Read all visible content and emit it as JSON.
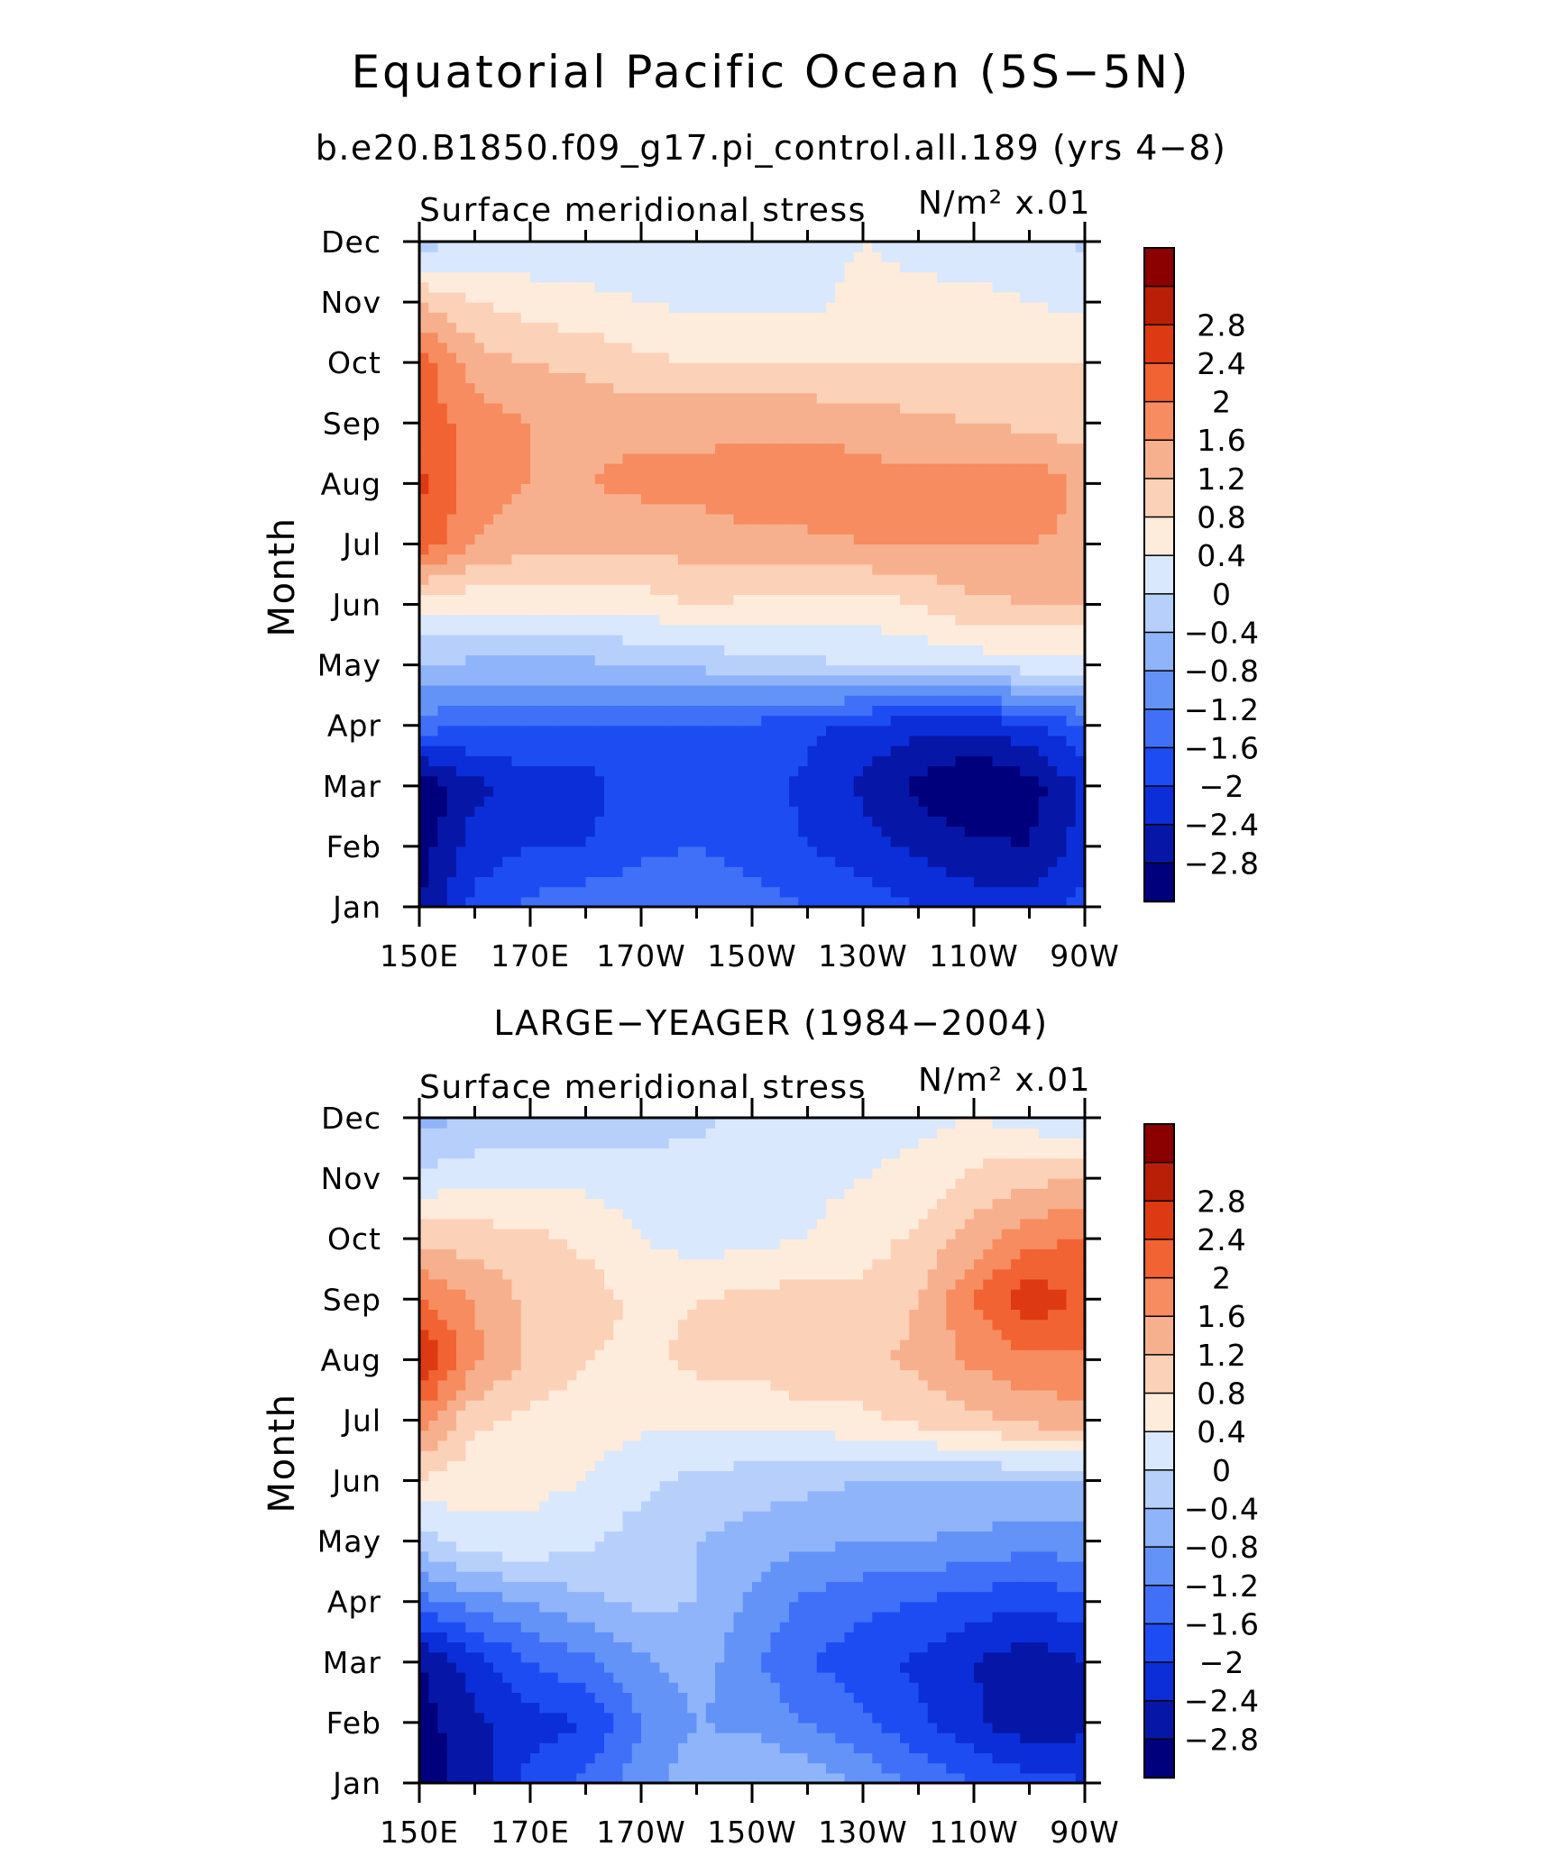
{
  "title": "Equatorial Pacific Ocean (5S−5N)",
  "colors": [
    "#00007d",
    "#0617a8",
    "#0b2ed8",
    "#1d4df2",
    "#3f70f7",
    "#6493f7",
    "#8fb4f9",
    "#b7d0fb",
    "#d9e8fd",
    "#fdebdb",
    "#fbd1b8",
    "#f7b08d",
    "#f68c5f",
    "#f26333",
    "#dd3a13",
    "#b91e06",
    "#8b0000"
  ],
  "chart_data": [
    {
      "type": "heatmap",
      "subtitle": "b.e20.B1850.f09_g17.pi_control.all.189 (yrs 4−8)",
      "variable_label": "Surface meridional stress",
      "units_label": "N/m² x.01",
      "ylabel": "Month",
      "x_ticks": [
        "150E",
        "170E",
        "170W",
        "150W",
        "130W",
        "110W",
        "90W"
      ],
      "y_ticks": [
        "Jan",
        "Feb",
        "Mar",
        "Apr",
        "May",
        "Jun",
        "Jul",
        "Aug",
        "Sep",
        "Oct",
        "Nov",
        "Dec"
      ],
      "x": [
        150,
        160,
        170,
        180,
        190,
        200,
        210,
        220,
        230,
        240,
        250,
        260,
        270
      ],
      "contour_levels": [
        -3.2,
        -2.8,
        -2.4,
        -2.0,
        -1.6,
        -1.2,
        -0.8,
        -0.4,
        0,
        0.4,
        0.8,
        1.2,
        1.6,
        2.0,
        2.4,
        2.8,
        3.2
      ],
      "colorbar_labels": [
        "2.8",
        "2.4",
        "2",
        "1.6",
        "1.2",
        "0.8",
        "0.4",
        "0",
        "−0.4",
        "−0.8",
        "−1.2",
        "−1.6",
        "−2",
        "−2.4",
        "−2.8"
      ],
      "values": [
        [
          -2.8,
          -1.9,
          -1.5,
          -1.3,
          -1.3,
          -1.3,
          -1.4,
          -1.6,
          -1.8,
          -2.0,
          -2.2,
          -2.2,
          -1.8
        ],
        [
          -3.0,
          -2.2,
          -2.0,
          -2.0,
          -1.7,
          -1.6,
          -1.8,
          -2.0,
          -2.2,
          -2.5,
          -2.7,
          -2.8,
          -2.2
        ],
        [
          -3.2,
          -2.5,
          -2.2,
          -2.2,
          -1.7,
          -1.6,
          -1.8,
          -2.1,
          -2.5,
          -2.9,
          -3.3,
          -3.0,
          -2.3
        ],
        [
          -1.4,
          -1.6,
          -1.6,
          -1.6,
          -1.6,
          -1.6,
          -1.7,
          -1.9,
          -2.1,
          -2.3,
          -2.3,
          -2.1,
          -1.6
        ],
        [
          -0.4,
          -0.5,
          -0.5,
          -0.5,
          -0.4,
          -0.3,
          -0.2,
          -0.1,
          0.0,
          0.05,
          0.15,
          0.2,
          0.2
        ],
        [
          0.5,
          0.5,
          0.6,
          0.6,
          0.6,
          0.8,
          0.7,
          0.7,
          0.6,
          0.8,
          1.1,
          1.2,
          1.2
        ],
        [
          2.3,
          1.6,
          1.3,
          1.3,
          1.3,
          1.4,
          1.5,
          1.5,
          1.6,
          1.6,
          1.6,
          1.6,
          1.5
        ],
        [
          2.5,
          1.8,
          1.6,
          1.6,
          1.7,
          1.7,
          1.8,
          1.9,
          1.8,
          1.7,
          1.8,
          1.9,
          1.5
        ],
        [
          2.3,
          1.8,
          1.6,
          1.5,
          1.5,
          1.5,
          1.5,
          1.5,
          1.4,
          1.3,
          1.2,
          1.1,
          1.0
        ],
        [
          2.2,
          1.4,
          1.2,
          1.1,
          0.9,
          0.8,
          0.8,
          0.8,
          0.8,
          0.8,
          0.8,
          0.8,
          0.8
        ],
        [
          1.2,
          0.8,
          0.6,
          0.5,
          0.4,
          0.3,
          0.3,
          0.3,
          0.5,
          0.5,
          0.5,
          0.4,
          0.3
        ],
        [
          -0.2,
          0.1,
          0.1,
          0.15,
          0.2,
          0.3,
          0.3,
          0.3,
          0.4,
          0.3,
          0.2,
          0.2,
          -0.1
        ]
      ]
    },
    {
      "type": "heatmap",
      "subtitle": "LARGE−YEAGER (1984−2004)",
      "variable_label": "Surface meridional stress",
      "units_label": "N/m² x.01",
      "ylabel": "Month",
      "x_ticks": [
        "150E",
        "170E",
        "170W",
        "150W",
        "130W",
        "110W",
        "90W"
      ],
      "y_ticks": [
        "Jan",
        "Feb",
        "Mar",
        "Apr",
        "May",
        "Jun",
        "Jul",
        "Aug",
        "Sep",
        "Oct",
        "Nov",
        "Dec"
      ],
      "x": [
        150,
        160,
        170,
        180,
        190,
        200,
        210,
        220,
        230,
        240,
        250,
        260,
        270
      ],
      "contour_levels": [
        -3.2,
        -2.8,
        -2.4,
        -2.0,
        -1.6,
        -1.2,
        -0.8,
        -0.4,
        0,
        0.4,
        0.8,
        1.2,
        1.6,
        2.0,
        2.4,
        2.8,
        3.2
      ],
      "colorbar_labels": [
        "2.8",
        "2.4",
        "2",
        "1.6",
        "1.2",
        "0.8",
        "0.4",
        "0",
        "−0.4",
        "−0.8",
        "−1.2",
        "−1.6",
        "−2",
        "−2.4",
        "−2.8"
      ],
      "values": [
        [
          -3.1,
          -2.6,
          -1.8,
          -1.5,
          -1.0,
          -0.5,
          -0.4,
          -0.5,
          -0.9,
          -1.3,
          -1.6,
          -1.8,
          -2.0
        ],
        [
          -3.0,
          -2.5,
          -2.2,
          -2.0,
          -1.2,
          -0.8,
          -0.9,
          -1.2,
          -1.5,
          -1.9,
          -2.3,
          -2.7,
          -2.5
        ],
        [
          -2.8,
          -2.2,
          -1.6,
          -1.3,
          -0.9,
          -0.6,
          -1.1,
          -1.6,
          -1.8,
          -2.1,
          -2.4,
          -2.7,
          -2.4
        ],
        [
          -1.4,
          -1.0,
          -0.8,
          -0.5,
          -0.3,
          -0.4,
          -0.9,
          -1.3,
          -1.5,
          -1.6,
          -1.8,
          -1.9,
          -1.7
        ],
        [
          -0.2,
          0.3,
          0.3,
          0.1,
          -0.2,
          -0.4,
          -0.6,
          -0.7,
          -0.8,
          -0.8,
          -0.9,
          -1.0,
          -1.0
        ],
        [
          0.8,
          0.5,
          0.5,
          0.4,
          0.1,
          -0.1,
          -0.2,
          -0.3,
          -0.4,
          -0.4,
          -0.4,
          -0.4,
          -0.4
        ],
        [
          1.8,
          0.9,
          0.7,
          0.6,
          0.5,
          0.5,
          0.5,
          0.6,
          0.7,
          0.9,
          1.1,
          1.3,
          1.5
        ],
        [
          2.9,
          1.7,
          1.1,
          0.8,
          0.7,
          0.9,
          0.9,
          1.2,
          1.1,
          1.3,
          1.7,
          1.9,
          1.9
        ],
        [
          2.0,
          1.6,
          1.1,
          1.0,
          0.7,
          0.8,
          0.9,
          1.0,
          0.9,
          1.2,
          2.0,
          2.7,
          2.3
        ],
        [
          1.1,
          1.0,
          0.9,
          0.7,
          0.4,
          0.2,
          0.3,
          0.4,
          0.6,
          0.9,
          1.4,
          1.9,
          2.0
        ],
        [
          0.1,
          0.3,
          0.3,
          0.3,
          0.2,
          0.2,
          0.3,
          0.3,
          0.4,
          0.5,
          0.9,
          1.1,
          1.2
        ],
        [
          -0.5,
          -0.4,
          -0.3,
          -0.4,
          -0.2,
          -0.1,
          0.1,
          0.3,
          0.3,
          0.3,
          0.4,
          0.2,
          0.0
        ]
      ]
    }
  ]
}
